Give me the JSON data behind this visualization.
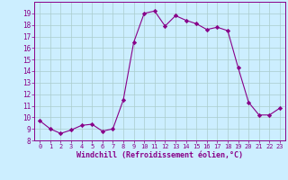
{
  "x": [
    0,
    1,
    2,
    3,
    4,
    5,
    6,
    7,
    8,
    9,
    10,
    11,
    12,
    13,
    14,
    15,
    16,
    17,
    18,
    19,
    20,
    21,
    22,
    23
  ],
  "y": [
    9.7,
    9.0,
    8.6,
    8.9,
    9.3,
    9.4,
    8.8,
    9.0,
    11.5,
    16.5,
    19.0,
    19.2,
    17.9,
    18.8,
    18.4,
    18.1,
    17.6,
    17.8,
    17.5,
    14.3,
    11.3,
    10.2,
    10.2,
    10.8
  ],
  "line_color": "#880088",
  "marker": "D",
  "marker_size": 2.2,
  "bg_color": "#cceeff",
  "grid_color": "#aacccc",
  "xlabel": "Windchill (Refroidissement éolien,°C)",
  "xlabel_color": "#880088",
  "tick_color": "#880088",
  "ylim": [
    8,
    20
  ],
  "yticks": [
    8,
    9,
    10,
    11,
    12,
    13,
    14,
    15,
    16,
    17,
    18,
    19
  ],
  "xlim": [
    -0.5,
    23.5
  ],
  "xticks": [
    0,
    1,
    2,
    3,
    4,
    5,
    6,
    7,
    8,
    9,
    10,
    11,
    12,
    13,
    14,
    15,
    16,
    17,
    18,
    19,
    20,
    21,
    22,
    23
  ]
}
